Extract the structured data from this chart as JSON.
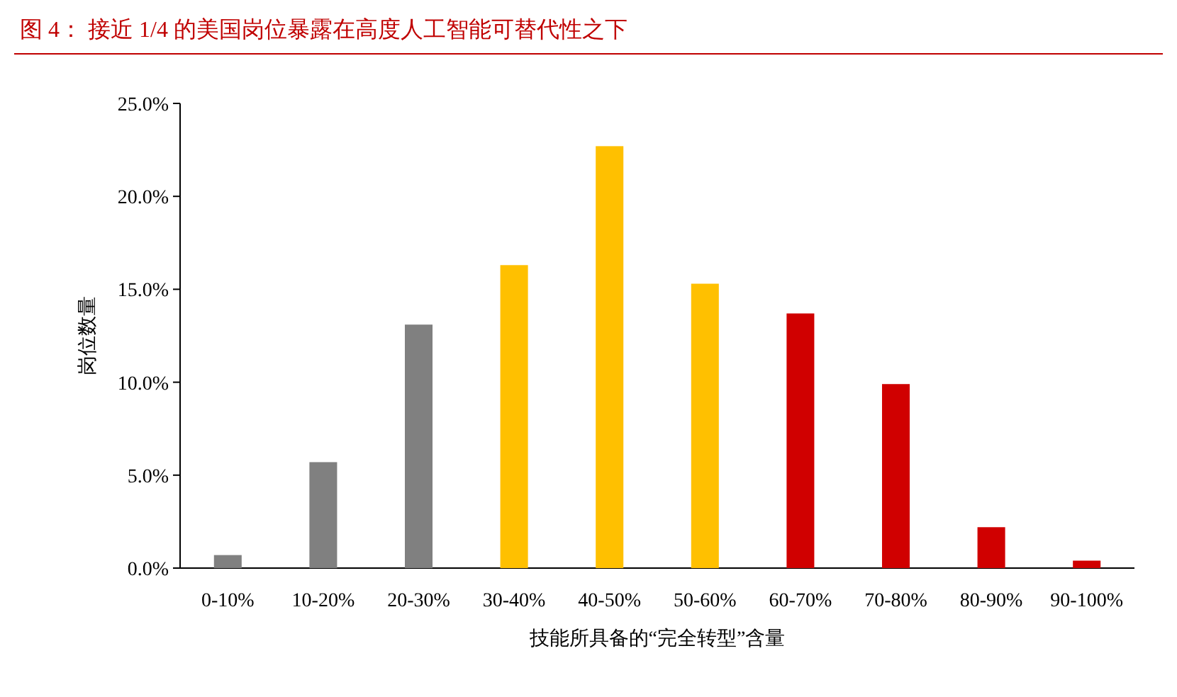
{
  "chart_data": {
    "type": "bar",
    "title": "图 4：  接近 1/4 的美国岗位暴露在高度人工智能可替代性之下",
    "xlabel": "技能所具备的“完全转型”含量",
    "ylabel": "岗位数量",
    "categories": [
      "0-10%",
      "10-20%",
      "20-30%",
      "30-40%",
      "40-50%",
      "50-60%",
      "60-70%",
      "70-80%",
      "80-90%",
      "90-100%"
    ],
    "values": [
      0.7,
      5.7,
      13.1,
      16.3,
      22.7,
      15.3,
      13.7,
      9.9,
      2.2,
      0.4
    ],
    "colors": [
      "#808080",
      "#808080",
      "#808080",
      "#ffc000",
      "#ffc000",
      "#ffc000",
      "#d00000",
      "#d00000",
      "#d00000",
      "#d00000"
    ],
    "ylim": [
      0,
      25
    ],
    "yticks": [
      {
        "value": 0,
        "label": "0.0%"
      },
      {
        "value": 5,
        "label": "5.0%"
      },
      {
        "value": 10,
        "label": "10.0%"
      },
      {
        "value": 15,
        "label": "15.0%"
      },
      {
        "value": 20,
        "label": "20.0%"
      },
      {
        "value": 25,
        "label": "25.0%"
      }
    ],
    "grid": false
  }
}
